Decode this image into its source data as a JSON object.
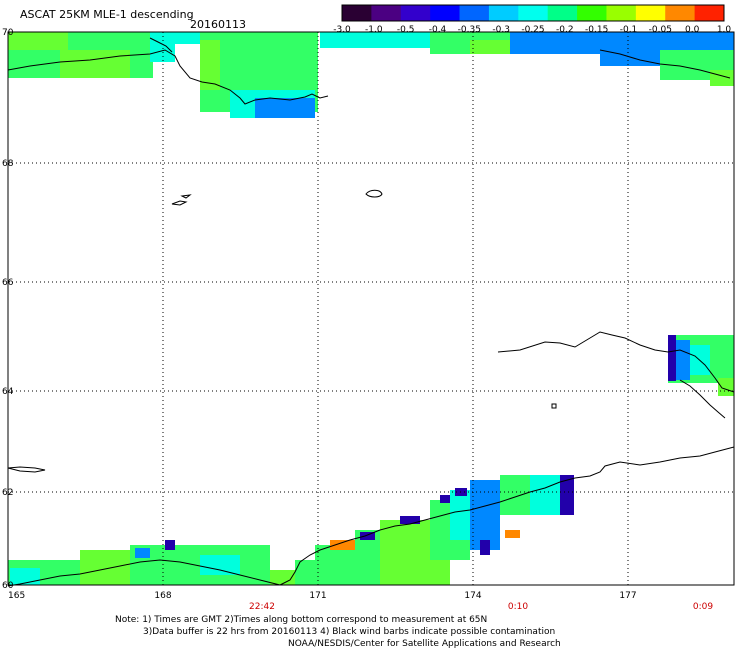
{
  "header": {
    "title": "ASCAT 25KM MLE-1 descending",
    "date": "20160113"
  },
  "colorbar": {
    "tick_labels": [
      "-3.0",
      "-1.0",
      "-0.5",
      "-0.4",
      "-0.35",
      "-0.3",
      "-0.25",
      "-0.2",
      "-0.15",
      "-0.1",
      "-0.05",
      "0.0",
      "1.0"
    ],
    "colors": [
      "#2a0033",
      "#4b0082",
      "#3300cc",
      "#0000ff",
      "#0066ff",
      "#00ccff",
      "#00ffee",
      "#00ff88",
      "#33ff00",
      "#99ff00",
      "#ffff00",
      "#ff8800",
      "#ff2200"
    ]
  },
  "map": {
    "lat_labels": [
      "70",
      "68",
      "66",
      "64",
      "62",
      "60"
    ],
    "lon_labels": [
      "165",
      "168",
      "171",
      "174",
      "177"
    ],
    "time_labels": [
      "22:42",
      "0:10",
      "0:09"
    ],
    "swath_colors": {
      "green": "#33ff66",
      "lime": "#66ff33",
      "cyan": "#00ffdd",
      "blue": "#0088ff",
      "dblue": "#0000ff",
      "violet": "#2200aa",
      "orange": "#ff8800"
    },
    "coast_color": "#000000",
    "grid_color": "#000000"
  },
  "notes": [
    "Note: 1) Times are GMT 2)Times along bottom correspond to measurement at 65N",
    "3)Data buffer is 22 hrs from 20160113 4) Black wind barbs indicate possible contamination",
    "NOAA/NESDIS/Center for Satellite Applications and Research"
  ]
}
